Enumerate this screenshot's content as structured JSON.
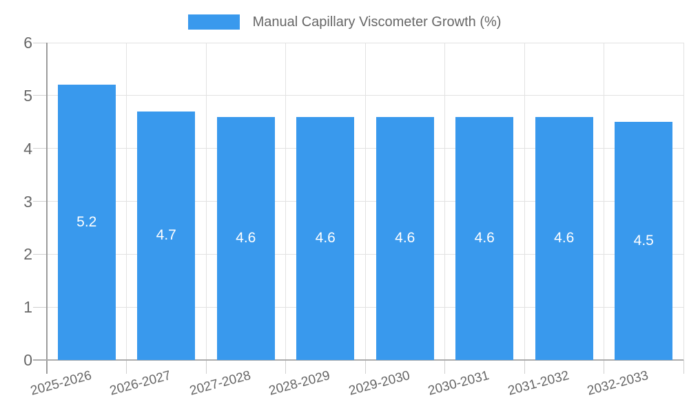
{
  "chart_data": {
    "type": "bar",
    "title": "Manual Capillary Viscometer Growth (%)",
    "categories": [
      "2025-2026",
      "2026-2027",
      "2027-2028",
      "2028-2029",
      "2029-2030",
      "2030-2031",
      "2031-2032",
      "2032-2033"
    ],
    "values": [
      5.2,
      4.7,
      4.6,
      4.6,
      4.6,
      4.6,
      4.6,
      4.5
    ],
    "value_labels": [
      "5.2",
      "4.7",
      "4.6",
      "4.6",
      "4.6",
      "4.6",
      "4.6",
      "4.5"
    ],
    "xlabel": "",
    "ylabel": "",
    "ylim": [
      0,
      6
    ],
    "y_ticks": [
      0,
      1,
      2,
      3,
      4,
      5,
      6
    ],
    "grid": true,
    "legend_position": "top",
    "bar_color": "#3999ED",
    "value_label_color": "#ffffff",
    "axis_text_color": "#666666"
  }
}
